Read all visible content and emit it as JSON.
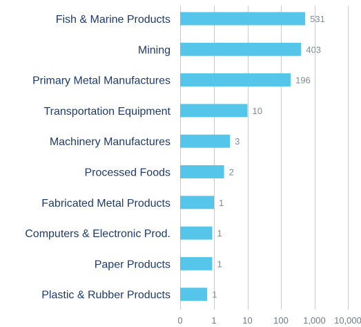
{
  "chart_data": {
    "type": "bar",
    "orientation": "horizontal",
    "x_scale": "log",
    "categories": [
      "Fish & Marine Products",
      "Mining",
      "Primary Metal Manufactures",
      "Transportation Equipment",
      "Machinery Manufactures",
      "Processed Foods",
      "Fabricated Metal Products",
      "Computers & Electronic Prod.",
      "Paper Products",
      "Plastic & Rubber Products"
    ],
    "values": [
      531,
      403,
      196,
      10,
      3,
      2,
      1,
      1,
      1,
      1
    ],
    "value_labels": [
      "531",
      "403",
      "196",
      "10",
      "3",
      "2",
      "1",
      "1",
      "1",
      "1"
    ],
    "plot_values": [
      531,
      403,
      196,
      10,
      3,
      2,
      1.0,
      0.95,
      0.95,
      0.8
    ],
    "x_ticks": [
      "0",
      "1",
      "10",
      "100",
      "1,000",
      "10,000"
    ],
    "x_tick_values": [
      0,
      1,
      10,
      100,
      1000,
      10000
    ],
    "xlim": [
      0,
      10000
    ],
    "grid": true,
    "bar_color": "#56c5ea",
    "grid_color": "#c7c9cc",
    "label_color": "#1f3a6e"
  }
}
